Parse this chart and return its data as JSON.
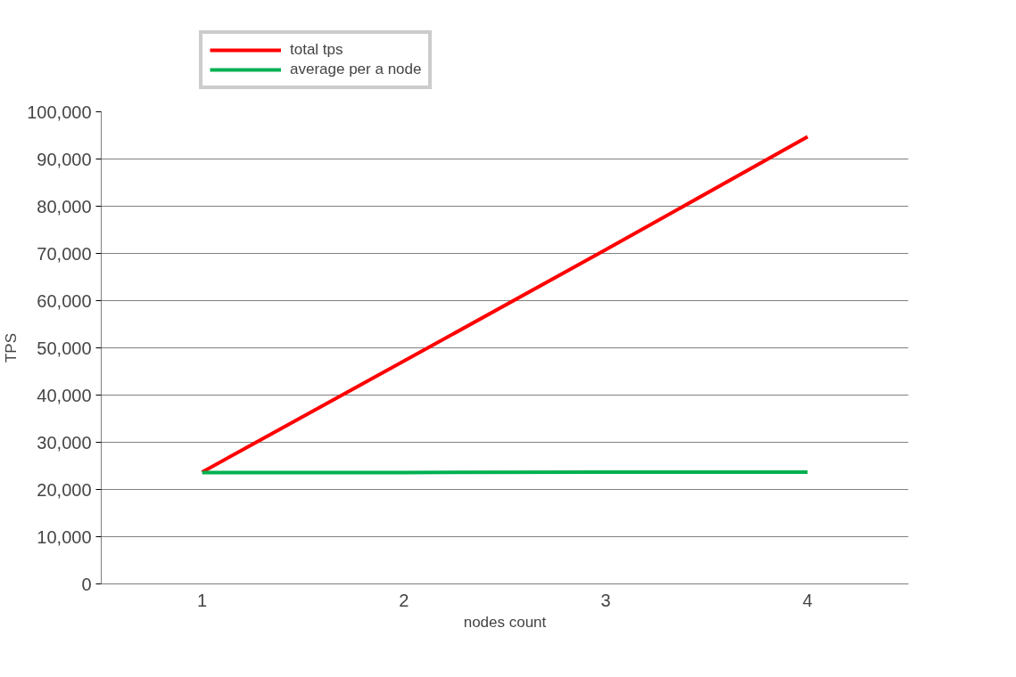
{
  "chart_data": {
    "type": "line",
    "xlabel": "nodes count",
    "ylabel": "TPS",
    "categories": [
      "1",
      "2",
      "3",
      "4"
    ],
    "series": [
      {
        "name": "total tps",
        "color": "#ff0000",
        "values": [
          23700,
          47200,
          70800,
          94700
        ]
      },
      {
        "name": "average per a node",
        "color": "#00b050",
        "values": [
          23600,
          23600,
          23700,
          23700
        ]
      }
    ],
    "ylim": [
      0,
      100000
    ],
    "yticks": [
      {
        "value": 0,
        "label": "0"
      },
      {
        "value": 10000,
        "label": "10,000"
      },
      {
        "value": 20000,
        "label": "20,000"
      },
      {
        "value": 30000,
        "label": "30,000"
      },
      {
        "value": 40000,
        "label": "40,000"
      },
      {
        "value": 50000,
        "label": "50,000"
      },
      {
        "value": 60000,
        "label": "60,000"
      },
      {
        "value": 70000,
        "label": "70,000"
      },
      {
        "value": 80000,
        "label": "80,000"
      },
      {
        "value": 90000,
        "label": "90,000"
      },
      {
        "value": 100000,
        "label": "100,000"
      }
    ],
    "grid": "y",
    "legend": "top left",
    "marker": "none",
    "line_style": "solid"
  }
}
